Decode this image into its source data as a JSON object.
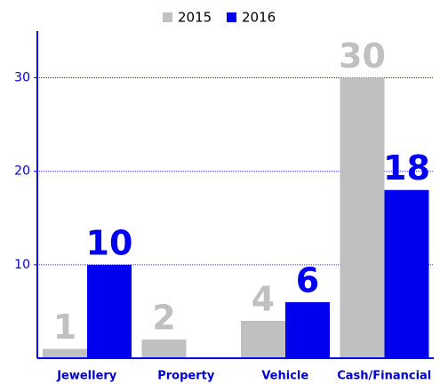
{
  "chart_data": {
    "type": "bar",
    "categories": [
      "Jewellery",
      "Property",
      "Vehicle",
      "Cash/Financial"
    ],
    "series": [
      {
        "name": "2015",
        "color": "#c0c0c0",
        "values": [
          1,
          2,
          4,
          30
        ]
      },
      {
        "name": "2016",
        "color": "#0000ee",
        "values": [
          10,
          null,
          6,
          18
        ]
      }
    ],
    "ylim": [
      0,
      35
    ],
    "yticks": [
      10,
      20,
      30
    ],
    "grid": true,
    "legend": "top"
  }
}
